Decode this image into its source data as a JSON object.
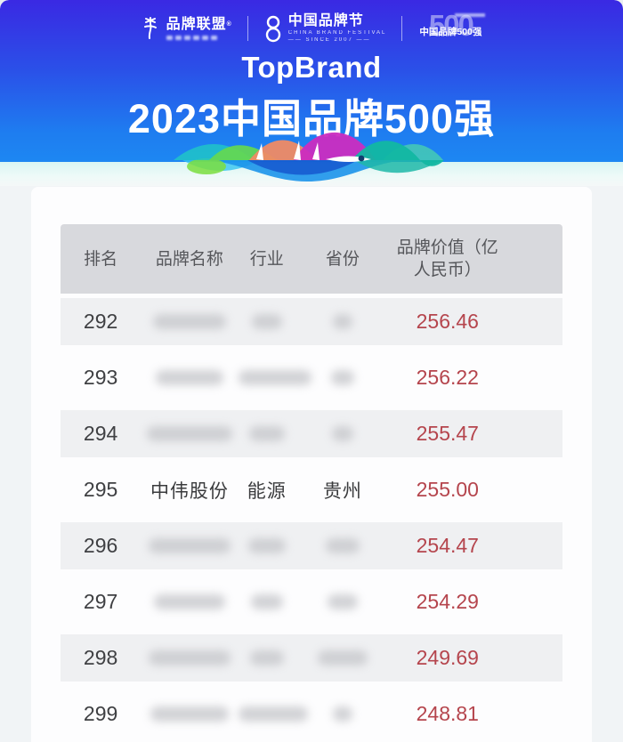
{
  "masthead": {
    "logo_alliance": {
      "label": "品牌联盟",
      "reg_mark": "®"
    },
    "logo_festival": {
      "label": "中国品牌节",
      "sub1": "CHINA BRAND FESTIVAL",
      "sub2": "—— SINCE 2007 ——"
    },
    "logo_top500": {
      "big": "500",
      "label": "中国品牌500强"
    },
    "title_en": "TopBrand",
    "title_cn": "2023中国品牌500强"
  },
  "table": {
    "headers": {
      "rank": "排名",
      "brand": "品牌名称",
      "industry": "行业",
      "province": "省份",
      "value_line1": "品牌价值（亿",
      "value_line2": "人民币）"
    },
    "rows": [
      {
        "rank": "292",
        "brand": "",
        "industry": "",
        "province": "",
        "value": "256.46",
        "redacted": true,
        "blur": {
          "brand": 82,
          "industry": 34,
          "province": 22
        }
      },
      {
        "rank": "293",
        "brand": "",
        "industry": "",
        "province": "",
        "value": "256.22",
        "redacted": true,
        "blur": {
          "brand": 76,
          "industry": 82,
          "province": 26
        }
      },
      {
        "rank": "294",
        "brand": "",
        "industry": "",
        "province": "",
        "value": "255.47",
        "redacted": true,
        "blur": {
          "brand": 96,
          "industry": 40,
          "province": 24
        }
      },
      {
        "rank": "295",
        "brand": "中伟股份",
        "industry": "能源",
        "province": "贵州",
        "value": "255.00",
        "redacted": false
      },
      {
        "rank": "296",
        "brand": "",
        "industry": "",
        "province": "",
        "value": "254.47",
        "redacted": true,
        "blur": {
          "brand": 92,
          "industry": 42,
          "province": 38
        }
      },
      {
        "rank": "297",
        "brand": "",
        "industry": "",
        "province": "",
        "value": "254.29",
        "redacted": true,
        "blur": {
          "brand": 80,
          "industry": 36,
          "province": 34
        }
      },
      {
        "rank": "298",
        "brand": "",
        "industry": "",
        "province": "",
        "value": "249.69",
        "redacted": true,
        "blur": {
          "brand": 92,
          "industry": 38,
          "province": 56
        }
      },
      {
        "rank": "299",
        "brand": "",
        "industry": "",
        "province": "",
        "value": "248.81",
        "redacted": true,
        "blur": {
          "brand": 88,
          "industry": 78,
          "province": 22
        }
      }
    ]
  },
  "colors": {
    "hero_gradient_top": "#3a29e3",
    "hero_gradient_mid": "#2b4fe8",
    "hero_gradient_bottom": "#1d87f2",
    "table_header_bg": "#d8d9dd",
    "row_stripe_bg": "#eff0f2",
    "value_red": "#b5454d",
    "rank_text": "#3f4043",
    "wave_palette": [
      "#20c4c8",
      "#66d94e",
      "#f08a64",
      "#cb2cc0",
      "#12b7a2",
      "#1c93ea",
      "#1557cf",
      "#35c4f0"
    ]
  }
}
